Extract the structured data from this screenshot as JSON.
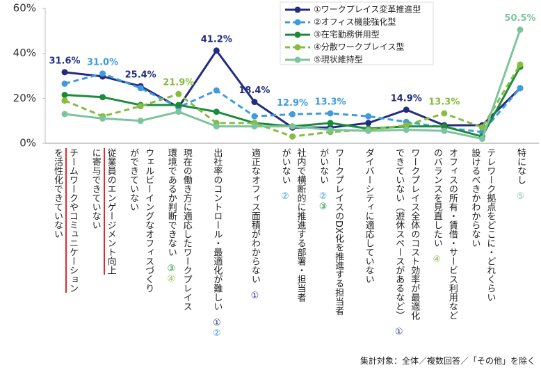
{
  "chart_data": {
    "type": "line",
    "categories": [
      [
        "チームワークやコミュニケーション",
        "を活性化できていない"
      ],
      [
        "従業員のエンゲージメント向上",
        "に寄与できていない"
      ],
      [
        "ウェルビーイングなオフィスづくり",
        "ができていない"
      ],
      [
        "現在の働き方に適応したワークプレイス",
        "環境であるか判断できない"
      ],
      [
        "出社率のコントロール・最適化が難しい"
      ],
      [
        "適正なオフィス面積がわからない"
      ],
      [
        "社内で横断的に推進する部署・担当者",
        "がいない"
      ],
      [
        "ワークプレイスのDX化を推進する担当者",
        "がいない"
      ],
      [
        "ダイバーシティに適応していない"
      ],
      [
        "ワークプレイス全体のコスト効率が最適化",
        "できていない（遊休スペースがあるなど）"
      ],
      [
        "オフィスの所有・賃借・サービス利用など",
        "のバランスを見直したい"
      ],
      [
        "テレワーク拠点をどこに・どれくらい",
        "設けるべきかわからない"
      ],
      [
        "特になし"
      ]
    ],
    "category_notes": [
      null,
      null,
      null,
      "③④",
      "①②",
      "①",
      "②",
      "②③",
      null,
      "①",
      "④",
      null,
      "⑤"
    ],
    "series": [
      {
        "name": "①ワークプレイス変革推進型",
        "color": "#232c7e",
        "dashed": false,
        "values": [
          31.6,
          29.7,
          25.4,
          16,
          41.2,
          18.4,
          7,
          7,
          9,
          14.9,
          8,
          8,
          24.5
        ],
        "value_labels": [
          "31.6%",
          null,
          "25.4%",
          null,
          "41.2%",
          "18.4%",
          null,
          null,
          null,
          "14.9%",
          null,
          null,
          null
        ]
      },
      {
        "name": "②オフィス機能強化型",
        "color": "#3f9be0",
        "dashed": true,
        "values": [
          26.5,
          31.0,
          24.5,
          16,
          23.5,
          12,
          12.9,
          13.3,
          12,
          9.5,
          7,
          5,
          24.5
        ],
        "value_labels": [
          null,
          "31.0%",
          null,
          null,
          null,
          null,
          "12.9%",
          "13.3%",
          null,
          null,
          null,
          null,
          null
        ]
      },
      {
        "name": "③在宅勤務併用型",
        "color": "#1b8b3b",
        "dashed": false,
        "values": [
          21.5,
          20.5,
          17,
          17,
          14,
          9,
          7.5,
          9,
          6.5,
          7.5,
          7.5,
          3,
          34
        ],
        "value_labels": [
          null,
          null,
          null,
          null,
          null,
          null,
          null,
          null,
          null,
          null,
          null,
          null,
          null
        ]
      },
      {
        "name": "④分散ワークプレイス型",
        "color": "#86bd3f",
        "dashed": true,
        "values": [
          19,
          12,
          16.5,
          21.9,
          9,
          9,
          3,
          5,
          6,
          8,
          13.3,
          7,
          35
        ],
        "value_labels": [
          null,
          null,
          null,
          "21.9%",
          null,
          null,
          null,
          null,
          null,
          null,
          "13.3%",
          null,
          null
        ]
      },
      {
        "name": "⑤現状維持型",
        "color": "#7cc49d",
        "dashed": false,
        "values": [
          13,
          11,
          10,
          14,
          7.5,
          7.5,
          7.5,
          6,
          5.5,
          6,
          5.5,
          2,
          50.5
        ],
        "value_labels": [
          null,
          null,
          null,
          null,
          null,
          null,
          null,
          null,
          null,
          null,
          null,
          null,
          "50.5%"
        ]
      }
    ],
    "ylim": [
      0,
      60
    ],
    "yticks": [
      {
        "value": 0,
        "label": "0%"
      },
      {
        "value": 20,
        "label": "20%"
      },
      {
        "value": 40,
        "label": "40%"
      },
      {
        "value": 60,
        "label": "60%"
      }
    ],
    "legend": "top",
    "note": "集計対象：全体／複数回答／「その他」を除く"
  }
}
